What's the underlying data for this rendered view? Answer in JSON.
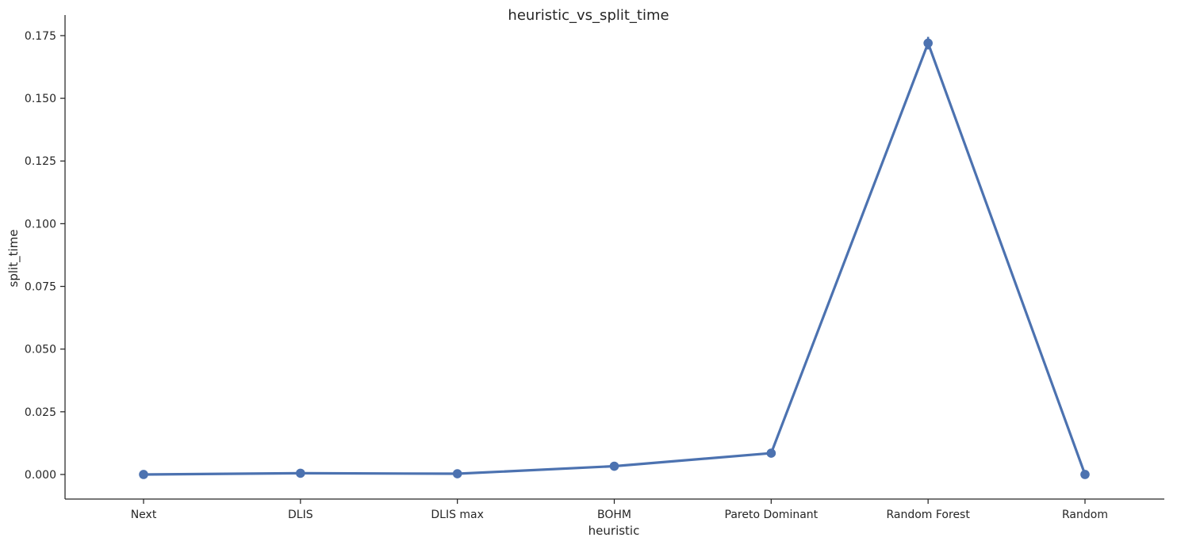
{
  "chart_data": {
    "type": "line",
    "title": "heuristic_vs_split_time",
    "xlabel": "heuristic",
    "ylabel": "split_time",
    "categories": [
      "Next",
      "DLIS",
      "DLIS max",
      "BOHM",
      "Pareto Dominant",
      "Random Forest",
      "Random"
    ],
    "series": [
      {
        "values": [
          0.0,
          0.0005,
          0.0003,
          0.0033,
          0.0085,
          0.172,
          0.0
        ],
        "error": [
          0.0,
          0.0,
          0.0,
          0.0,
          0.0,
          0.0025,
          0.0
        ],
        "color": "#4c72b0"
      }
    ],
    "ylim": [
      -0.0098,
      0.1832
    ],
    "yticks": [
      "0.000",
      "0.025",
      "0.050",
      "0.075",
      "0.100",
      "0.125",
      "0.150",
      "0.175"
    ],
    "grid": false,
    "legend": "none"
  }
}
